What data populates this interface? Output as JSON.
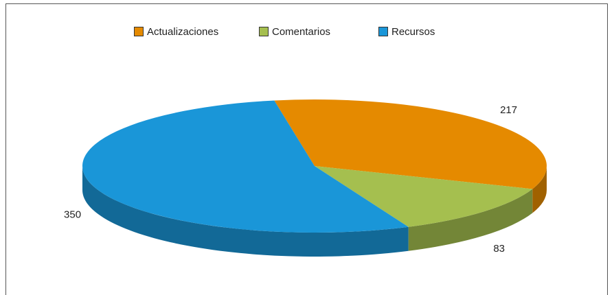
{
  "chart_data": {
    "type": "pie3d",
    "series": [
      {
        "name": "Actualizaciones",
        "color": "#e58a00",
        "values": [
          217
        ]
      },
      {
        "name": "Comentarios",
        "color": "#a5bf4f",
        "values": [
          83
        ]
      },
      {
        "name": "Recursos",
        "color": "#1a96d8",
        "values": [
          350
        ]
      }
    ],
    "legend": "top"
  }
}
